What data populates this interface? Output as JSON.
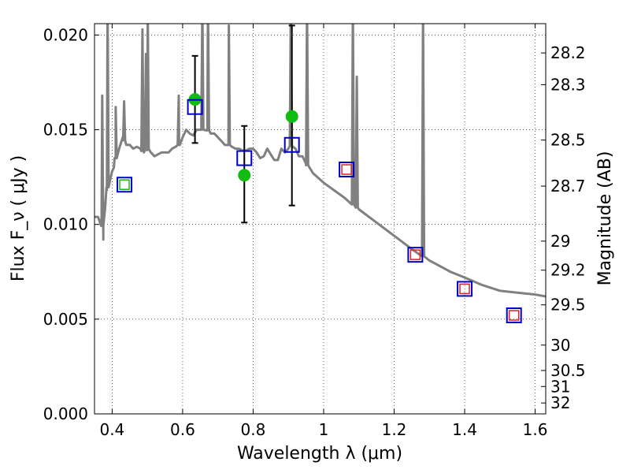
{
  "chart_data": {
    "type": "scatter",
    "title": "",
    "xlabel": "Wavelength  λ (μm)",
    "ylabel": "Flux  F_ν  ( μJy )",
    "ylabel_right": "Magnitude (AB)",
    "xlim": [
      0.35,
      1.63
    ],
    "ylim": [
      0.0,
      0.0206
    ],
    "grid": true,
    "x_ticks": [
      0.4,
      0.6,
      0.8,
      1.0,
      1.2,
      1.4,
      1.6
    ],
    "x_tick_labels": [
      "0.4",
      "0.6",
      "0.8",
      "1",
      "1.2",
      "1.4",
      "1.6"
    ],
    "y_ticks": [
      0.0,
      0.005,
      0.01,
      0.015,
      0.02
    ],
    "y_tick_labels": [
      "0.000",
      "0.005",
      "0.010",
      "0.015",
      "0.020"
    ],
    "right_ticks": [
      28.2,
      28.3,
      28.5,
      28.7,
      29,
      29.2,
      29.5,
      30,
      30.5,
      31,
      32
    ],
    "right_tick_labels": [
      "28.2",
      "28.3",
      "28.5",
      "28.7",
      "29",
      "29.2",
      "29.5",
      "30",
      "30.5",
      "31",
      "32"
    ],
    "colors": {
      "model_line": "#808080",
      "green_points": "#11bb11",
      "blue_squares": "#0000cc",
      "red_squares": "#dd2222",
      "green_square": "#11bb11",
      "errorbars": "#000000"
    },
    "model_spectrum": {
      "x": [
        0.35,
        0.36,
        0.37,
        0.375,
        0.38,
        0.385,
        0.39,
        0.395,
        0.4,
        0.405,
        0.41,
        0.42,
        0.43,
        0.44,
        0.45,
        0.46,
        0.47,
        0.48,
        0.49,
        0.5,
        0.51,
        0.52,
        0.53,
        0.54,
        0.55,
        0.56,
        0.57,
        0.58,
        0.59,
        0.6,
        0.61,
        0.62,
        0.63,
        0.64,
        0.65,
        0.66,
        0.67,
        0.68,
        0.69,
        0.7,
        0.71,
        0.72,
        0.73,
        0.74,
        0.75,
        0.76,
        0.77,
        0.78,
        0.79,
        0.8,
        0.81,
        0.82,
        0.83,
        0.84,
        0.85,
        0.86,
        0.87,
        0.88,
        0.89,
        0.9,
        0.91,
        0.92,
        0.93,
        0.94,
        0.95,
        0.97,
        1.0,
        1.03,
        1.06,
        1.1,
        1.15,
        1.2,
        1.25,
        1.3,
        1.32,
        1.34,
        1.36,
        1.4,
        1.45,
        1.5,
        1.55,
        1.6,
        1.63
      ],
      "y": [
        0.0104,
        0.0104,
        0.0104,
        0.0092,
        0.0108,
        0.0118,
        0.0122,
        0.0124,
        0.0128,
        0.013,
        0.0135,
        0.014,
        0.0146,
        0.0142,
        0.0142,
        0.014,
        0.0141,
        0.014,
        0.0138,
        0.014,
        0.0138,
        0.0136,
        0.0137,
        0.0138,
        0.0138,
        0.0138,
        0.014,
        0.0141,
        0.0142,
        0.0146,
        0.015,
        0.0148,
        0.0147,
        0.015,
        0.015,
        0.015,
        0.015,
        0.0148,
        0.0148,
        0.0146,
        0.0144,
        0.0142,
        0.0142,
        0.0141,
        0.014,
        0.014,
        0.0139,
        0.0139,
        0.014,
        0.014,
        0.0138,
        0.0135,
        0.0136,
        0.014,
        0.0137,
        0.0134,
        0.0134,
        0.014,
        0.0138,
        0.014,
        0.0142,
        0.014,
        0.0136,
        0.0136,
        0.0132,
        0.0127,
        0.0122,
        0.0118,
        0.0114,
        0.0108,
        0.0101,
        0.0094,
        0.0087,
        0.0081,
        0.0079,
        0.0077,
        0.0075,
        0.0072,
        0.0068,
        0.0065,
        0.0064,
        0.0063,
        0.0062
      ],
      "emission_lines": [
        {
          "x": 0.372,
          "peak": 0.0158
        },
        {
          "x": 0.387,
          "peak": 0.0206
        },
        {
          "x": 0.41,
          "peak": 0.0152
        },
        {
          "x": 0.434,
          "peak": 0.0155
        },
        {
          "x": 0.486,
          "peak": 0.0193
        },
        {
          "x": 0.496,
          "peak": 0.018
        },
        {
          "x": 0.501,
          "peak": 0.0206
        },
        {
          "x": 0.589,
          "peak": 0.0158
        },
        {
          "x": 0.656,
          "peak": 0.0206
        },
        {
          "x": 0.672,
          "peak": 0.0206
        },
        {
          "x": 0.731,
          "peak": 0.0195
        },
        {
          "x": 0.907,
          "peak": 0.0206
        },
        {
          "x": 0.953,
          "peak": 0.0206
        },
        {
          "x": 1.083,
          "peak": 0.0206
        },
        {
          "x": 1.094,
          "peak": 0.0168
        },
        {
          "x": 1.282,
          "peak": 0.0206
        }
      ]
    },
    "green_points": [
      {
        "x": 0.635,
        "y": 0.0166,
        "err_low": 0.0143,
        "err_high": 0.0189
      },
      {
        "x": 0.775,
        "y": 0.0126,
        "err_low": 0.0101,
        "err_high": 0.0152
      },
      {
        "x": 0.91,
        "y": 0.0157,
        "err_low": 0.011,
        "err_high": 0.0205
      }
    ],
    "blue_squares": [
      {
        "x": 0.435,
        "y": 0.0121
      },
      {
        "x": 0.635,
        "y": 0.0162
      },
      {
        "x": 0.775,
        "y": 0.0135
      },
      {
        "x": 0.91,
        "y": 0.0142
      },
      {
        "x": 1.065,
        "y": 0.0129
      },
      {
        "x": 1.26,
        "y": 0.0084
      },
      {
        "x": 1.4,
        "y": 0.0066
      },
      {
        "x": 1.54,
        "y": 0.0052
      }
    ],
    "red_squares": [
      {
        "x": 1.065,
        "y": 0.0129
      },
      {
        "x": 1.26,
        "y": 0.0084
      },
      {
        "x": 1.4,
        "y": 0.0066
      },
      {
        "x": 1.54,
        "y": 0.0052
      }
    ],
    "green_squares": [
      {
        "x": 0.435,
        "y": 0.0121
      }
    ]
  }
}
